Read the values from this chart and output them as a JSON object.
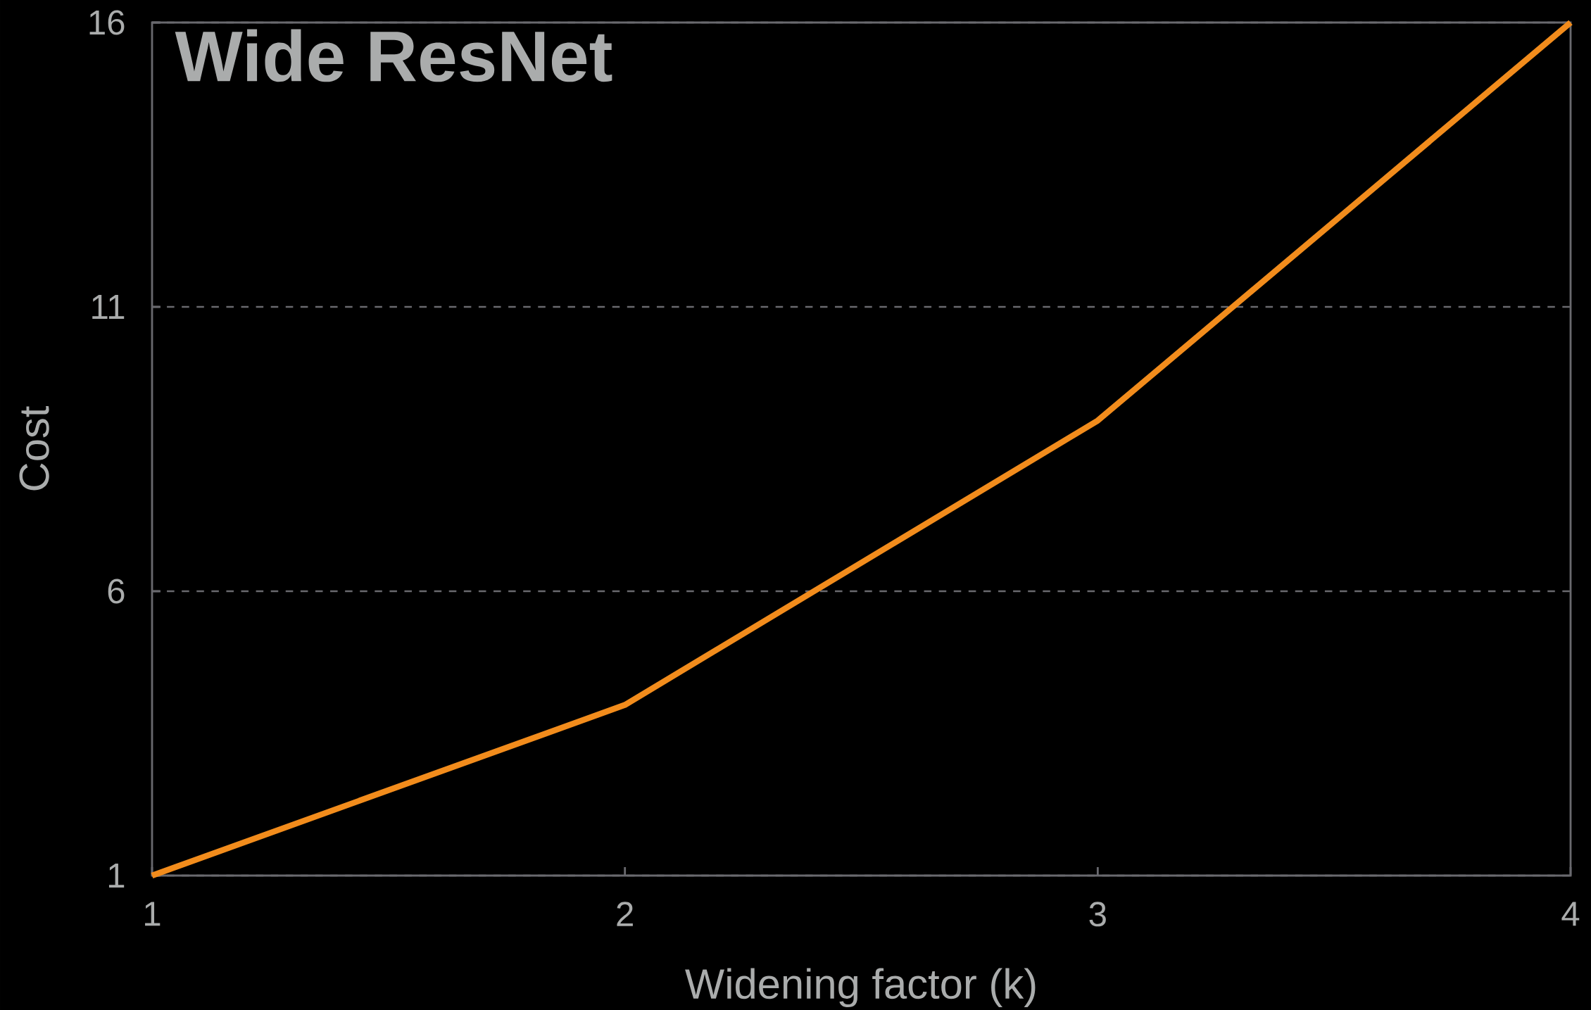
{
  "chart_data": {
    "type": "line",
    "title": "Wide ResNet",
    "xlabel": "Widening factor (k)",
    "ylabel": "Cost",
    "x": [
      1,
      2,
      3,
      4
    ],
    "series": [
      {
        "color": "#f28c1c",
        "values": [
          1,
          4,
          9,
          16
        ]
      }
    ],
    "xlim": [
      1,
      4
    ],
    "ylim": [
      1,
      16
    ],
    "xticks": [
      1,
      2,
      3,
      4
    ],
    "yticks": [
      1,
      6,
      11,
      16
    ],
    "grid": "y"
  }
}
